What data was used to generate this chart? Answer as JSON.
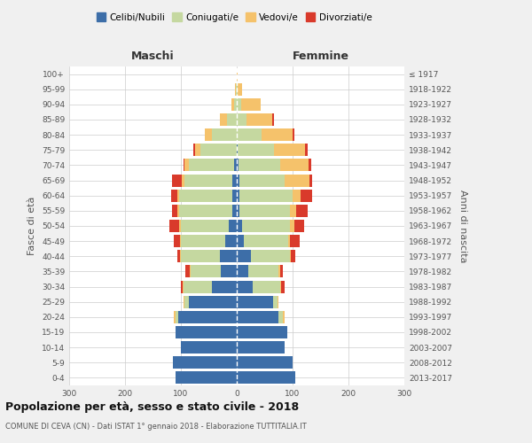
{
  "age_groups": [
    "0-4",
    "5-9",
    "10-14",
    "15-19",
    "20-24",
    "25-29",
    "30-34",
    "35-39",
    "40-44",
    "45-49",
    "50-54",
    "55-59",
    "60-64",
    "65-69",
    "70-74",
    "75-79",
    "80-84",
    "85-89",
    "90-94",
    "95-99",
    "100+"
  ],
  "birth_years": [
    "2013-2017",
    "2008-2012",
    "2003-2007",
    "1998-2002",
    "1993-1997",
    "1988-1992",
    "1983-1987",
    "1978-1982",
    "1973-1977",
    "1968-1972",
    "1963-1967",
    "1958-1962",
    "1953-1957",
    "1948-1952",
    "1943-1947",
    "1938-1942",
    "1933-1937",
    "1928-1932",
    "1923-1927",
    "1918-1922",
    "≤ 1917"
  ],
  "male": {
    "celibi": [
      110,
      115,
      100,
      110,
      105,
      85,
      45,
      28,
      30,
      20,
      15,
      8,
      8,
      8,
      5,
      0,
      0,
      0,
      0,
      0,
      0
    ],
    "coniugati": [
      0,
      0,
      0,
      0,
      5,
      8,
      50,
      55,
      70,
      80,
      85,
      95,
      95,
      85,
      80,
      65,
      45,
      18,
      5,
      2,
      0
    ],
    "vedovi": [
      0,
      0,
      0,
      0,
      2,
      2,
      2,
      1,
      2,
      2,
      3,
      3,
      3,
      5,
      8,
      10,
      12,
      12,
      5,
      1,
      0
    ],
    "divorziati": [
      0,
      0,
      0,
      0,
      0,
      0,
      3,
      8,
      5,
      10,
      18,
      10,
      12,
      18,
      3,
      3,
      0,
      0,
      0,
      0,
      0
    ]
  },
  "female": {
    "nubili": [
      105,
      100,
      85,
      90,
      75,
      65,
      28,
      20,
      25,
      12,
      10,
      5,
      5,
      5,
      3,
      2,
      0,
      0,
      0,
      0,
      0
    ],
    "coniugate": [
      0,
      0,
      0,
      0,
      8,
      8,
      50,
      55,
      70,
      80,
      85,
      90,
      95,
      80,
      75,
      65,
      45,
      18,
      8,
      2,
      0
    ],
    "vedove": [
      0,
      0,
      0,
      0,
      2,
      2,
      2,
      2,
      2,
      3,
      8,
      12,
      15,
      45,
      50,
      55,
      55,
      45,
      35,
      8,
      1
    ],
    "divorziate": [
      0,
      0,
      0,
      0,
      0,
      0,
      5,
      5,
      8,
      18,
      18,
      20,
      20,
      5,
      5,
      5,
      3,
      3,
      0,
      0,
      0
    ]
  },
  "colors": {
    "celibi": "#3d6ea8",
    "coniugati": "#c5d8a0",
    "vedovi": "#f5c26b",
    "divorziati": "#d93a2b"
  },
  "title": "Popolazione per età, sesso e stato civile - 2018",
  "subtitle": "COMUNE DI CEVA (CN) - Dati ISTAT 1° gennaio 2018 - Elaborazione TUTTITALIA.IT",
  "ylabel_left": "Fasce di età",
  "ylabel_right": "Anni di nascita",
  "xlim": 300,
  "legend_labels": [
    "Celibi/Nubili",
    "Coniugati/e",
    "Vedovi/e",
    "Divorziati/e"
  ],
  "background_color": "#f0f0f0",
  "plot_bg": "#ffffff"
}
